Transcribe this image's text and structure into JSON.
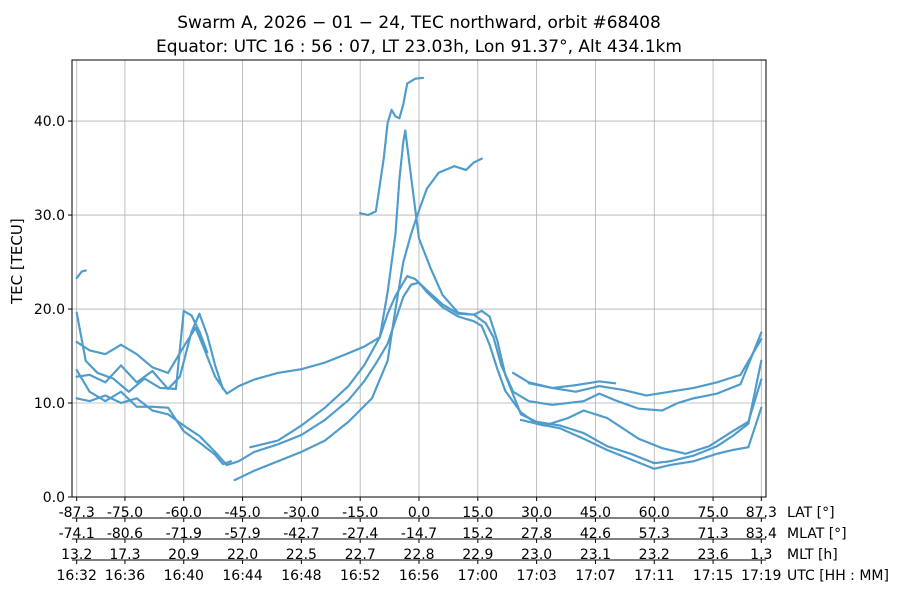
{
  "chart_data": {
    "type": "scatter",
    "title": "Swarm A,  2026 − 01 − 24,  TEC northward,  orbit #68408",
    "subtitle": "Equator:  UTC 16 : 56 : 07,  LT 23.03h,  Lon 91.37°,  Alt 434.1km",
    "ylabel": "TEC [TECU]",
    "ylim": [
      0,
      46.5
    ],
    "yticks": [
      "0.0",
      "10.0",
      "20.0",
      "30.0",
      "40.0"
    ],
    "ytick_values": [
      0,
      10,
      20,
      30,
      40
    ],
    "xlim": [
      -88.5,
      88.5
    ],
    "grid": true,
    "marker_color": "#4f9ccb",
    "x_axes": [
      {
        "label": "LAT [°]",
        "ticks": [
          "-87.3",
          "-75.0",
          "-60.0",
          "-45.0",
          "-30.0",
          "-15.0",
          "0.0",
          "15.0",
          "30.0",
          "45.0",
          "60.0",
          "75.0",
          "87.3"
        ]
      },
      {
        "label": "MLAT [°]",
        "ticks": [
          "-74.1",
          "-80.6",
          "-71.9",
          "-57.9",
          "-42.7",
          "-27.4",
          "-14.7",
          "15.2",
          "27.8",
          "42.6",
          "57.3",
          "71.3",
          "83.4"
        ]
      },
      {
        "label": "MLT [h]",
        "ticks": [
          "13.2",
          "17.3",
          "20.9",
          "22.0",
          "22.5",
          "22.7",
          "22.8",
          "22.9",
          "23.0",
          "23.1",
          "23.2",
          "23.6",
          "1.3"
        ]
      },
      {
        "label": "UTC [HH : MM]",
        "ticks": [
          "16:32",
          "16:36",
          "16:40",
          "16:44",
          "16:48",
          "16:52",
          "16:56",
          "17:00",
          "17:03",
          "17:07",
          "17:11",
          "17:15",
          "17:19"
        ]
      }
    ],
    "x_tick_values": [
      -87.3,
      -75,
      -60,
      -45,
      -30,
      -15,
      0,
      15,
      30,
      45,
      60,
      75,
      87.3
    ],
    "series": [
      {
        "points": [
          [
            -87.3,
            10.5
          ],
          [
            -84,
            10.2
          ],
          [
            -80,
            10.8
          ],
          [
            -76,
            10.0
          ],
          [
            -72,
            10.5
          ],
          [
            -68,
            9.2
          ],
          [
            -64,
            8.8
          ],
          [
            -60,
            7.6
          ],
          [
            -56,
            6.5
          ],
          [
            -52,
            4.8
          ],
          [
            -49,
            3.4
          ],
          [
            -46,
            3.8
          ],
          [
            -42,
            4.8
          ],
          [
            -36,
            5.6
          ],
          [
            -30,
            6.6
          ],
          [
            -24,
            8.2
          ],
          [
            -18,
            10.3
          ],
          [
            -14,
            12.3
          ],
          [
            -11,
            14.2
          ],
          [
            -8,
            16.3
          ],
          [
            -6,
            18.8
          ],
          [
            -4,
            21.3
          ],
          [
            -2,
            22.6
          ],
          [
            0,
            22.8
          ],
          [
            2,
            21.8
          ],
          [
            6,
            20.2
          ],
          [
            10,
            19.2
          ],
          [
            14,
            18.7
          ],
          [
            16,
            18.2
          ],
          [
            18,
            16.2
          ],
          [
            20,
            13.6
          ],
          [
            22,
            11.3
          ],
          [
            26,
            9.0
          ],
          [
            30,
            7.8
          ],
          [
            36,
            7.3
          ],
          [
            42,
            6.2
          ],
          [
            48,
            5.0
          ],
          [
            54,
            4.0
          ],
          [
            60,
            3.0
          ],
          [
            64,
            3.4
          ],
          [
            70,
            3.8
          ],
          [
            76,
            4.6
          ],
          [
            80,
            5.0
          ],
          [
            84,
            5.3
          ],
          [
            87.3,
            9.5
          ]
        ]
      },
      {
        "points": [
          [
            -87.3,
            16.5
          ],
          [
            -84,
            15.6
          ],
          [
            -80,
            15.2
          ],
          [
            -76,
            16.2
          ],
          [
            -72,
            15.2
          ],
          [
            -68,
            13.8
          ],
          [
            -64,
            13.2
          ],
          [
            -60,
            16.0
          ],
          [
            -57,
            18.0
          ],
          [
            -55,
            16.0
          ],
          [
            -52,
            12.8
          ],
          [
            -49,
            11.0
          ],
          [
            -46,
            11.8
          ],
          [
            -42,
            12.5
          ],
          [
            -36,
            13.2
          ],
          [
            -30,
            13.6
          ],
          [
            -24,
            14.3
          ],
          [
            -18,
            15.3
          ],
          [
            -14,
            16.0
          ],
          [
            -10,
            17.0
          ],
          [
            -8,
            21.8
          ],
          [
            -6,
            28.0
          ],
          [
            -5,
            33.8
          ],
          [
            -4,
            37.8
          ],
          [
            -3.5,
            39.0
          ],
          [
            -2,
            34.0
          ],
          [
            0,
            27.5
          ],
          [
            3,
            24.3
          ],
          [
            6,
            21.5
          ],
          [
            10,
            19.6
          ],
          [
            14,
            19.4
          ],
          [
            17,
            18.5
          ],
          [
            19,
            17.0
          ],
          [
            21,
            14.0
          ],
          [
            24,
            11.2
          ],
          [
            28,
            10.2
          ],
          [
            34,
            9.8
          ],
          [
            42,
            10.2
          ],
          [
            46,
            11.0
          ],
          [
            50,
            10.3
          ],
          [
            56,
            9.4
          ],
          [
            62,
            9.2
          ],
          [
            66,
            10.0
          ],
          [
            70,
            10.5
          ],
          [
            76,
            11.0
          ],
          [
            82,
            12.0
          ],
          [
            87.3,
            17.5
          ]
        ]
      },
      {
        "points": [
          [
            -87.3,
            12.8
          ],
          [
            -84,
            13.0
          ],
          [
            -80,
            12.2
          ],
          [
            -76,
            14.0
          ],
          [
            -72,
            12.2
          ],
          [
            -68,
            13.4
          ],
          [
            -64,
            11.5
          ],
          [
            -61,
            12.8
          ],
          [
            -58,
            17.6
          ],
          [
            -56,
            19.5
          ],
          [
            -54,
            17.2
          ],
          [
            -52,
            14.0
          ],
          [
            -50,
            11.5
          ]
        ]
      },
      {
        "points": [
          [
            -87.3,
            19.6
          ],
          [
            -85,
            14.5
          ],
          [
            -82,
            13.2
          ],
          [
            -78,
            12.6
          ],
          [
            -74,
            11.2
          ],
          [
            -70,
            12.6
          ],
          [
            -66,
            11.6
          ],
          [
            -62,
            11.5
          ],
          [
            -60,
            19.8
          ],
          [
            -58,
            19.3
          ],
          [
            -56,
            17.6
          ],
          [
            -54,
            15.4
          ]
        ]
      },
      {
        "points": [
          [
            -87.3,
            13.5
          ],
          [
            -84,
            11.2
          ],
          [
            -80,
            10.2
          ],
          [
            -76,
            11.2
          ],
          [
            -72,
            9.6
          ],
          [
            -68,
            9.6
          ],
          [
            -64,
            9.5
          ],
          [
            -60,
            7.0
          ],
          [
            -56,
            5.8
          ],
          [
            -52,
            4.5
          ],
          [
            -50,
            3.5
          ],
          [
            -48,
            3.8
          ]
        ]
      },
      {
        "points": [
          [
            -47,
            1.8
          ],
          [
            -42,
            2.8
          ],
          [
            -36,
            3.8
          ],
          [
            -30,
            4.8
          ],
          [
            -24,
            6.0
          ],
          [
            -18,
            8.0
          ],
          [
            -12,
            10.5
          ],
          [
            -8,
            14.5
          ],
          [
            -6,
            20.0
          ],
          [
            -4,
            25.0
          ],
          [
            -2,
            28.0
          ],
          [
            0,
            30.5
          ],
          [
            2,
            32.8
          ],
          [
            5,
            34.5
          ],
          [
            9,
            35.2
          ],
          [
            12,
            34.8
          ],
          [
            14,
            35.6
          ],
          [
            16,
            36.0
          ]
        ]
      },
      {
        "points": [
          [
            -43,
            5.3
          ],
          [
            -36,
            6.0
          ],
          [
            -30,
            7.6
          ],
          [
            -24,
            9.5
          ],
          [
            -18,
            11.8
          ],
          [
            -14,
            14.0
          ],
          [
            -10,
            17.0
          ],
          [
            -8,
            19.5
          ],
          [
            -6,
            21.4
          ],
          [
            -4,
            22.8
          ],
          [
            -3,
            23.5
          ],
          [
            -1,
            23.2
          ],
          [
            2,
            22.0
          ],
          [
            6,
            20.5
          ],
          [
            10,
            19.5
          ],
          [
            14,
            19.4
          ],
          [
            16,
            19.8
          ],
          [
            18,
            19.2
          ],
          [
            20,
            16.6
          ],
          [
            22,
            13.0
          ],
          [
            26,
            8.8
          ],
          [
            30,
            8.0
          ],
          [
            36,
            7.6
          ],
          [
            42,
            6.8
          ],
          [
            48,
            5.4
          ],
          [
            54,
            4.6
          ],
          [
            60,
            3.6
          ],
          [
            64,
            3.8
          ],
          [
            70,
            4.4
          ],
          [
            76,
            5.4
          ],
          [
            80,
            6.5
          ],
          [
            84,
            7.8
          ],
          [
            87.3,
            14.5
          ]
        ]
      },
      {
        "points": [
          [
            -15,
            30.2
          ],
          [
            -13,
            30.0
          ],
          [
            -11,
            30.4
          ],
          [
            -9,
            36.0
          ],
          [
            -8,
            39.8
          ],
          [
            -7,
            41.2
          ],
          [
            -6,
            40.5
          ],
          [
            -5,
            40.3
          ],
          [
            -4,
            41.8
          ],
          [
            -3,
            44.0
          ],
          [
            -1,
            44.5
          ],
          [
            1,
            44.6
          ]
        ]
      },
      {
        "points": [
          [
            24,
            13.2
          ],
          [
            28,
            12.2
          ],
          [
            34,
            11.6
          ],
          [
            40,
            11.2
          ],
          [
            46,
            11.8
          ],
          [
            52,
            11.4
          ],
          [
            58,
            10.8
          ],
          [
            64,
            11.2
          ],
          [
            70,
            11.6
          ],
          [
            76,
            12.2
          ],
          [
            82,
            13.0
          ],
          [
            87.3,
            16.8
          ]
        ]
      },
      {
        "points": [
          [
            28,
            12.1
          ],
          [
            34,
            11.6
          ],
          [
            40,
            11.9
          ],
          [
            46,
            12.3
          ],
          [
            50,
            12.1
          ]
        ]
      },
      {
        "points": [
          [
            26,
            8.2
          ],
          [
            32,
            7.6
          ],
          [
            38,
            8.4
          ],
          [
            42,
            9.2
          ],
          [
            48,
            8.4
          ],
          [
            56,
            6.2
          ],
          [
            62,
            5.2
          ],
          [
            68,
            4.6
          ],
          [
            74,
            5.4
          ],
          [
            80,
            7.0
          ],
          [
            84,
            8.0
          ],
          [
            87.3,
            12.5
          ]
        ]
      },
      {
        "points": [
          [
            -87.3,
            23.3
          ],
          [
            -86,
            24.0
          ],
          [
            -85,
            24.1
          ]
        ]
      }
    ]
  }
}
